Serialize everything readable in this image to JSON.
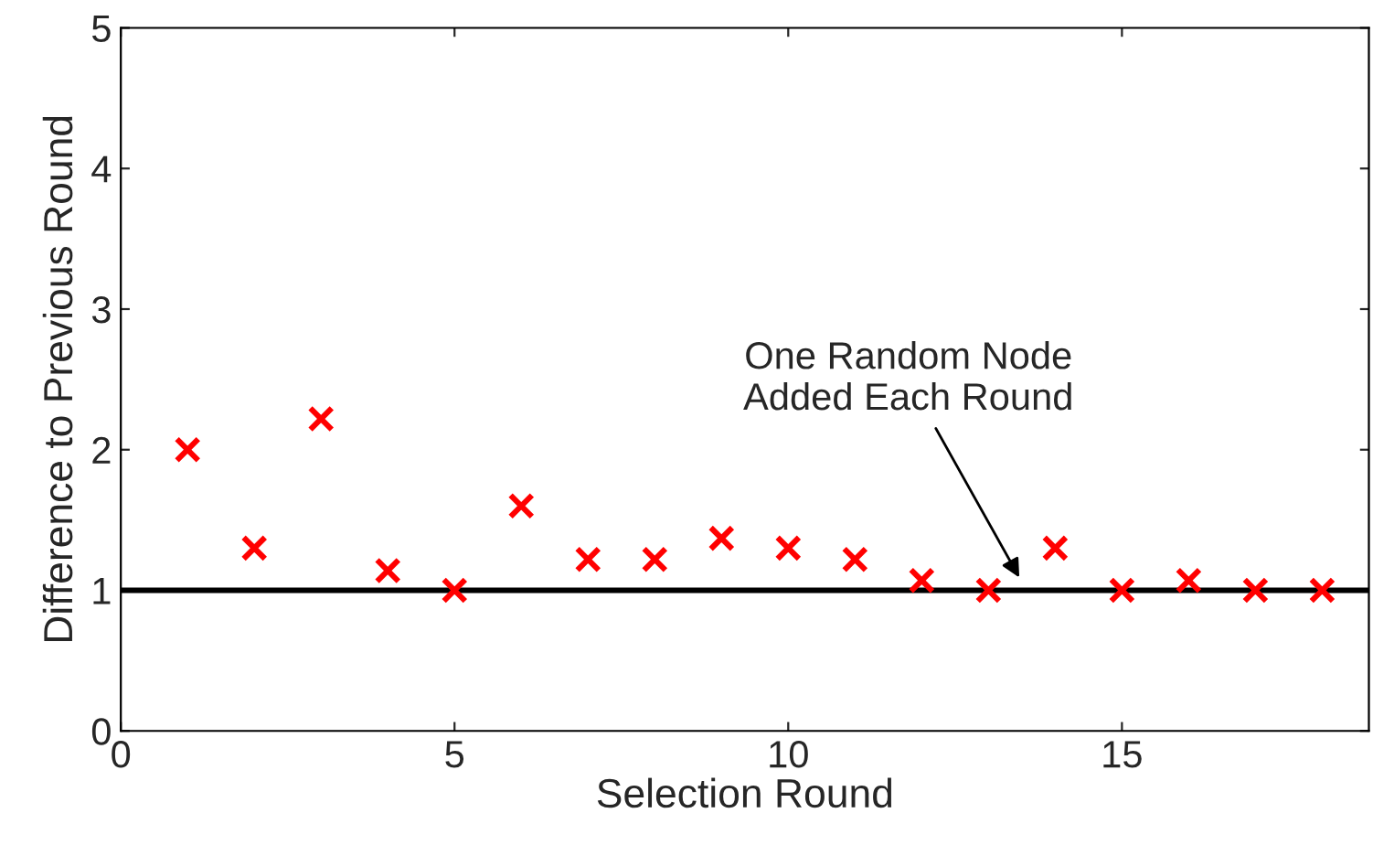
{
  "chart_data": {
    "type": "scatter",
    "xlabel": "Selection Round",
    "ylabel": "Difference to Previous Round",
    "x": [
      1,
      2,
      3,
      4,
      5,
      6,
      7,
      8,
      9,
      10,
      11,
      12,
      13,
      14,
      15,
      16,
      17,
      18
    ],
    "series": [
      {
        "color": "#ff0000",
        "values": [
          2.0,
          1.3,
          2.22,
          1.14,
          1.0,
          1.6,
          1.22,
          1.22,
          1.37,
          1.3,
          1.22,
          1.07,
          1.0,
          1.3,
          1.0,
          1.07,
          1.0,
          1.0
        ]
      }
    ],
    "marker": "cross",
    "xlim": [
      0,
      18.7
    ],
    "ylim": [
      0,
      5
    ],
    "xticks": [
      0,
      5,
      10,
      15
    ],
    "yticks": [
      0,
      1,
      2,
      3,
      4,
      5
    ],
    "grid": false,
    "ref_lines": [
      {
        "axis": "y",
        "value": 1,
        "color": "#000000",
        "line_style": "solid"
      }
    ],
    "annotations": [
      {
        "text": "One Random Node\nAdded Each Round",
        "x": 13.5,
        "y": 1.06
      }
    ]
  }
}
